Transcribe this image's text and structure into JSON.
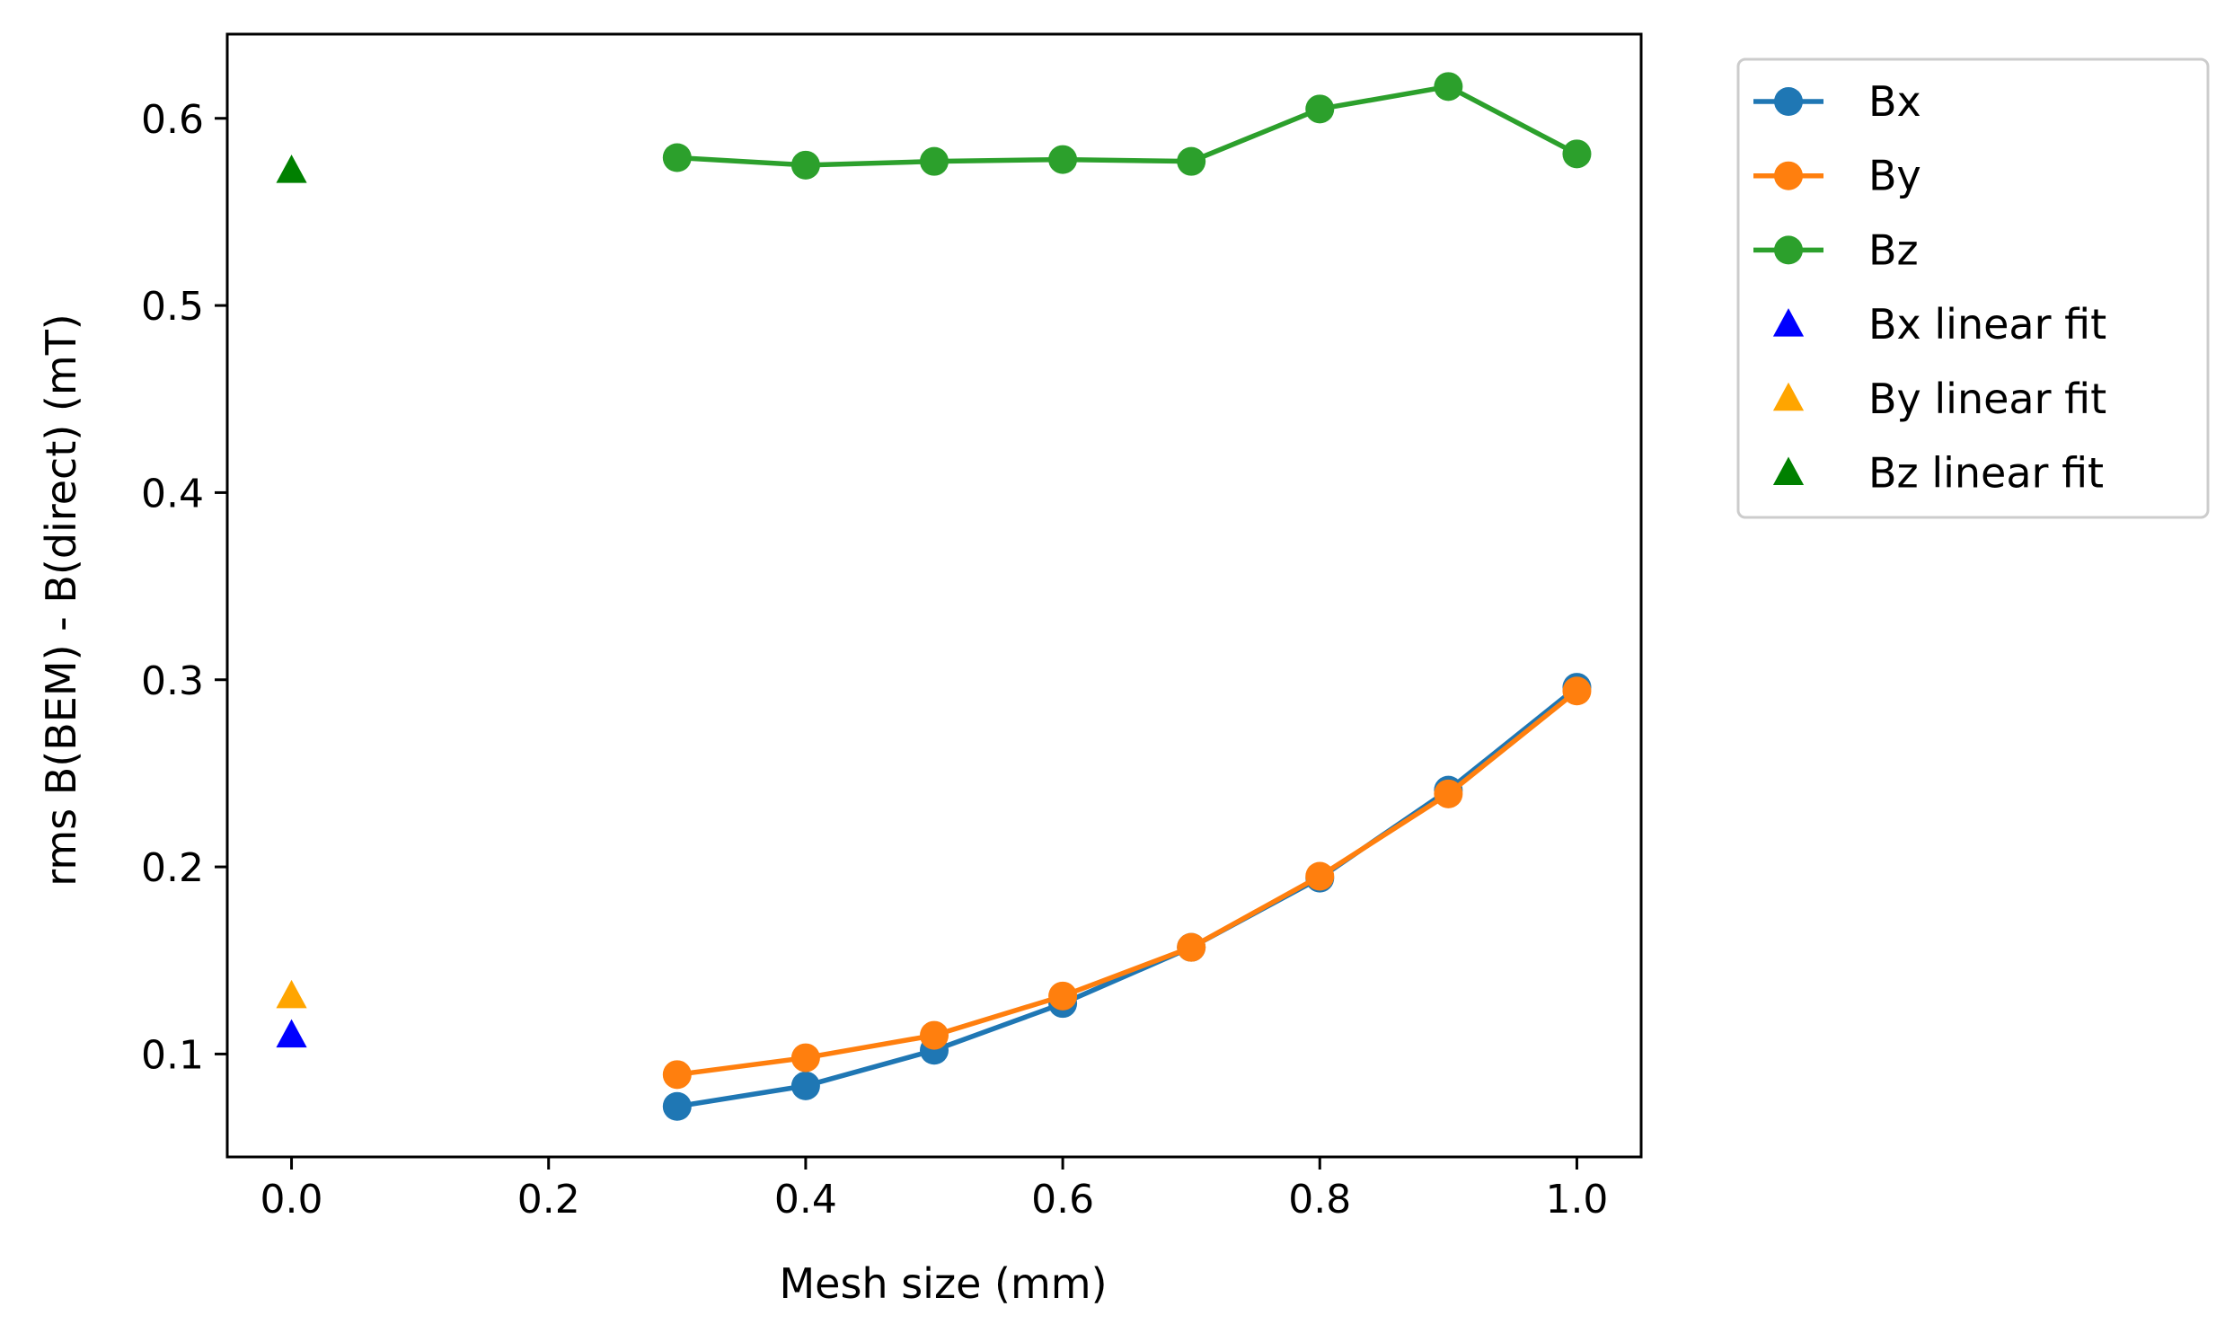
{
  "chart_data": {
    "type": "line",
    "title": "",
    "xlabel": "Mesh size (mm)",
    "ylabel": "rms B(BEM) - B(direct) (mT)",
    "xlim": [
      -0.05,
      1.05
    ],
    "ylim": [
      0.045,
      0.645
    ],
    "grid": false,
    "legend_position": "outside-right-top",
    "xticks": [
      0.0,
      0.2,
      0.4,
      0.6,
      0.8,
      1.0
    ],
    "xtick_labels": [
      "0.0",
      "0.2",
      "0.4",
      "0.6",
      "0.8",
      "1.0"
    ],
    "yticks": [
      0.1,
      0.2,
      0.3,
      0.4,
      0.5,
      0.6
    ],
    "ytick_labels": [
      "0.1",
      "0.2",
      "0.3",
      "0.4",
      "0.5",
      "0.6"
    ],
    "series": [
      {
        "name": "Bx",
        "kind": "line",
        "marker": "circle",
        "color": "#1f77b4",
        "x": [
          0.3,
          0.4,
          0.5,
          0.6,
          0.7,
          0.8,
          0.9,
          1.0
        ],
        "values": [
          0.072,
          0.083,
          0.102,
          0.127,
          0.157,
          0.194,
          0.241,
          0.296
        ]
      },
      {
        "name": "By",
        "kind": "line",
        "marker": "circle",
        "color": "#ff7f0e",
        "x": [
          0.3,
          0.4,
          0.5,
          0.6,
          0.7,
          0.8,
          0.9,
          1.0
        ],
        "values": [
          0.089,
          0.098,
          0.11,
          0.131,
          0.157,
          0.195,
          0.239,
          0.294
        ]
      },
      {
        "name": "Bz",
        "kind": "line",
        "marker": "circle",
        "color": "#2ca02c",
        "x": [
          0.3,
          0.4,
          0.5,
          0.6,
          0.7,
          0.8,
          0.9,
          1.0
        ],
        "values": [
          0.579,
          0.575,
          0.577,
          0.578,
          0.577,
          0.605,
          0.617,
          0.581
        ]
      },
      {
        "name": "Bx linear fit",
        "kind": "scatter",
        "marker": "triangle",
        "color": "#0000ff",
        "x": [
          0.0
        ],
        "values": [
          0.11
        ]
      },
      {
        "name": "By linear fit",
        "kind": "scatter",
        "marker": "triangle",
        "color": "#ffa500",
        "x": [
          0.0
        ],
        "values": [
          0.131
        ]
      },
      {
        "name": "Bz linear fit",
        "kind": "scatter",
        "marker": "triangle",
        "color": "#008000",
        "x": [
          0.0
        ],
        "values": [
          0.572
        ]
      }
    ]
  }
}
